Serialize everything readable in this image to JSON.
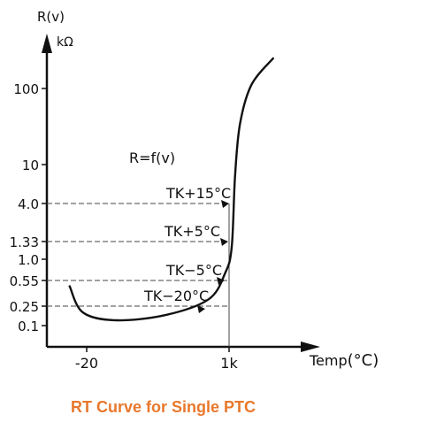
{
  "chart_data": {
    "type": "line",
    "title": "R=f(v)",
    "caption": "RT Curve for Single PTC",
    "ylabel": "R(v)",
    "yunit": "kΩ",
    "xlabel": "Temp(°C)",
    "xlabel_text": "Temp",
    "xlabel_unit": "(°C)",
    "x_ticks": [
      "-20",
      "1k"
    ],
    "y_ticks": [
      "100",
      "10",
      "4.0",
      "1.33",
      "1.0",
      "0.55",
      "0.25",
      "0.1"
    ],
    "reference_lines": [
      {
        "label": "TK+15°C",
        "y_tick": "4.0"
      },
      {
        "label": "TK+5°C",
        "y_tick": "1.33"
      },
      {
        "label": "TK−5°C",
        "y_tick": "0.55"
      },
      {
        "label": "TK−20°C",
        "y_tick": "0.25"
      }
    ],
    "series": [
      {
        "values_description": "curve",
        "points": [
          [
            0.02,
            0.13
          ],
          [
            0.1,
            0.03
          ],
          [
            0.3,
            0.0
          ],
          [
            0.6,
            0.02
          ],
          [
            0.86,
            0.08
          ],
          [
            0.96,
            0.18
          ],
          [
            1.0,
            0.28
          ],
          [
            1.02,
            0.55
          ],
          [
            1.05,
            0.75
          ],
          [
            1.12,
            0.9
          ],
          [
            1.25,
            1.0
          ]
        ]
      }
    ],
    "grid": false,
    "legend": "none"
  }
}
